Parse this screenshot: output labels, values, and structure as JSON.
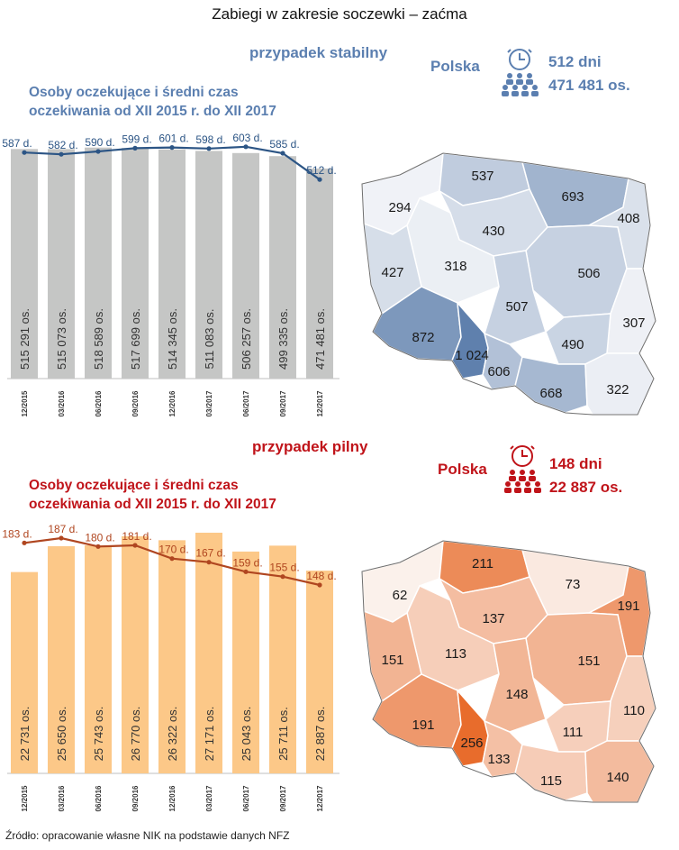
{
  "title": "Zabiegi w zakresie soczewki – zaćma",
  "source": "Źródło: opracowanie własne NIK na podstawie danych NFZ",
  "colors": {
    "blue_accent": "#5b7fb0",
    "blue_line": "#2c5585",
    "grey_bar": "#c5c6c5",
    "red_accent": "#c0141a",
    "red_line": "#b04620",
    "orange_bar": "#fcc888"
  },
  "stable": {
    "case_label": "przypadek stabilny",
    "chart_title_1": "Osoby oczekujące i średni czas",
    "chart_title_2": "oczekiwania od XII 2015 r. do XII 2017",
    "national_label": "Polska",
    "national_days": "512 dni",
    "national_people": "471 481 os.",
    "icons": [
      "clock-icon",
      "people-group-icon"
    ]
  },
  "urgent": {
    "case_label": "przypadek pilny",
    "chart_title_1": "Osoby oczekujące i średni czas",
    "chart_title_2": "oczekiwania od XII 2015 r. do XII 2017",
    "national_label": "Polska",
    "national_days": "148 dni",
    "national_people": "22 887 os.",
    "icons": [
      "clock-icon",
      "people-group-icon"
    ]
  },
  "chart_data": [
    {
      "type": "bar",
      "categories": [
        "12/2015",
        "03/2016",
        "06/2016",
        "09/2016",
        "12/2016",
        "03/2017",
        "06/2017",
        "09/2017",
        "12/2017"
      ],
      "series": [
        {
          "values": [
            515291,
            515073,
            518589,
            517699,
            514345,
            511083,
            506257,
            499335,
            471481
          ],
          "labels": [
            "515 291 os.",
            "515 073 os.",
            "518 589 os.",
            "517 699 os.",
            "514 345 os.",
            "511 083 os.",
            "506 257 os.",
            "499 335 os.",
            "471 481 os."
          ]
        },
        {
          "values": [
            587,
            582,
            590,
            599,
            601,
            598,
            603,
            585,
            512
          ],
          "labels": [
            "587 d.",
            "582 d.",
            "590 d.",
            "599 d.",
            "601 d.",
            "598 d.",
            "603 d.",
            "585 d.",
            "512 d."
          ]
        }
      ]
    },
    {
      "type": "bar",
      "categories": [
        "12/2015",
        "03/2016",
        "06/2016",
        "09/2016",
        "12/2016",
        "03/2017",
        "06/2017",
        "09/2017",
        "12/2017"
      ],
      "series": [
        {
          "values": [
            22731,
            25650,
            25743,
            26770,
            26322,
            27171,
            25043,
            25711,
            22887
          ],
          "labels": [
            "22 731 os.",
            "25 650 os.",
            "25 743 os.",
            "26 770 os.",
            "26 322 os.",
            "27 171 os.",
            "25 043 os.",
            "25 711 os.",
            "22 887 os."
          ]
        },
        {
          "values": [
            183,
            187,
            180,
            181,
            170,
            167,
            159,
            155,
            148
          ],
          "labels": [
            "183 d.",
            "187 d.",
            "180 d.",
            "181 d.",
            "170 d.",
            "167 d.",
            "159 d.",
            "155 d.",
            "148 d."
          ]
        }
      ]
    }
  ],
  "maps": {
    "stable": {
      "regions": [
        {
          "value": 294,
          "label": "294"
        },
        {
          "value": 537,
          "label": "537"
        },
        {
          "value": 693,
          "label": "693"
        },
        {
          "value": 408,
          "label": "408"
        },
        {
          "value": 430,
          "label": "430"
        },
        {
          "value": 318,
          "label": "318"
        },
        {
          "value": 427,
          "label": "427"
        },
        {
          "value": 506,
          "label": "506"
        },
        {
          "value": 507,
          "label": "507"
        },
        {
          "value": 307,
          "label": "307"
        },
        {
          "value": 872,
          "label": "872"
        },
        {
          "value": 1024,
          "label": "1 024"
        },
        {
          "value": 490,
          "label": "490"
        },
        {
          "value": 606,
          "label": "606"
        },
        {
          "value": 668,
          "label": "668"
        },
        {
          "value": 322,
          "label": "322"
        }
      ]
    },
    "urgent": {
      "regions": [
        {
          "value": 62,
          "label": "62"
        },
        {
          "value": 211,
          "label": "211"
        },
        {
          "value": 73,
          "label": "73"
        },
        {
          "value": 191,
          "label": "191"
        },
        {
          "value": 137,
          "label": "137"
        },
        {
          "value": 113,
          "label": "113"
        },
        {
          "value": 151,
          "label": "151"
        },
        {
          "value": 151,
          "label": "151"
        },
        {
          "value": 148,
          "label": "148"
        },
        {
          "value": 110,
          "label": "110"
        },
        {
          "value": 191,
          "label": "191"
        },
        {
          "value": 256,
          "label": "256"
        },
        {
          "value": 111,
          "label": "111"
        },
        {
          "value": 133,
          "label": "133"
        },
        {
          "value": 115,
          "label": "115"
        },
        {
          "value": 140,
          "label": "140"
        }
      ]
    }
  }
}
